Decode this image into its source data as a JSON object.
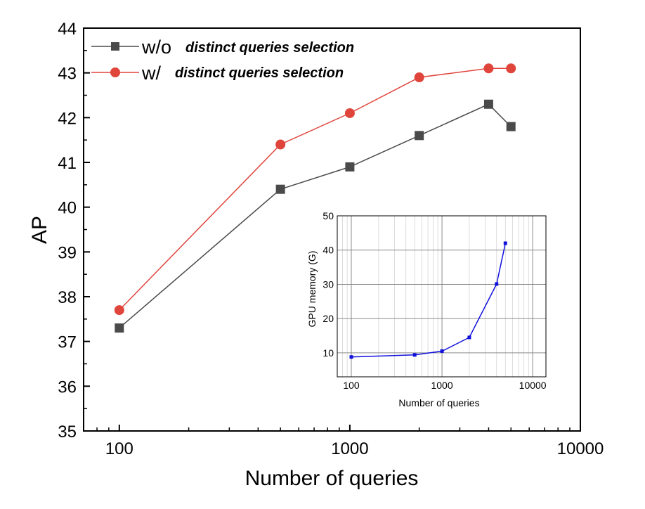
{
  "chart_data": [
    {
      "type": "line",
      "xscale": "log",
      "x": [
        100,
        500,
        1000,
        2000,
        4000,
        5000
      ],
      "xlim": [
        70,
        10000
      ],
      "ylim": [
        35,
        44
      ],
      "xticks": [
        100,
        1000,
        10000
      ],
      "xtick_labels": [
        "100",
        "1000",
        "10000"
      ],
      "yticks": [
        35,
        36,
        37,
        38,
        39,
        40,
        41,
        42,
        43,
        44
      ],
      "ytick_labels": [
        "35",
        "36",
        "37",
        "38",
        "39",
        "40",
        "41",
        "42",
        "43",
        "44"
      ],
      "xlabel": "Number of queries",
      "ylabel": "AP",
      "grid": false,
      "legend_position": "top-left",
      "series": [
        {
          "name_prefix": "w/o",
          "name_suffix": "distinct queries selection",
          "values": [
            37.3,
            40.4,
            40.9,
            41.6,
            42.3,
            41.8
          ],
          "color": "#4a4a4a",
          "marker": "square"
        },
        {
          "name_prefix": "w/",
          "name_suffix": "distinct queries selection",
          "values": [
            37.7,
            41.4,
            42.1,
            42.9,
            43.1,
            43.1
          ],
          "color": "#e0453c",
          "marker": "circle"
        }
      ]
    },
    {
      "type": "line",
      "xscale": "log",
      "x": [
        100,
        500,
        1000,
        2000,
        4000,
        5000
      ],
      "xlim": [
        70,
        14000
      ],
      "ylim": [
        3,
        50
      ],
      "xticks": [
        100,
        1000,
        10000
      ],
      "xtick_labels": [
        "100",
        "1000",
        "10000"
      ],
      "yticks": [
        10,
        20,
        30,
        40,
        50
      ],
      "ytick_labels": [
        "10",
        "20",
        "30",
        "40",
        "50"
      ],
      "xlabel": "Number of queries",
      "ylabel": "GPU memory (G)",
      "grid": true,
      "series": [
        {
          "values": [
            8.8,
            9.4,
            10.5,
            14.5,
            30.1,
            42.0
          ],
          "color": "#1010dd",
          "marker": "square"
        }
      ]
    }
  ]
}
